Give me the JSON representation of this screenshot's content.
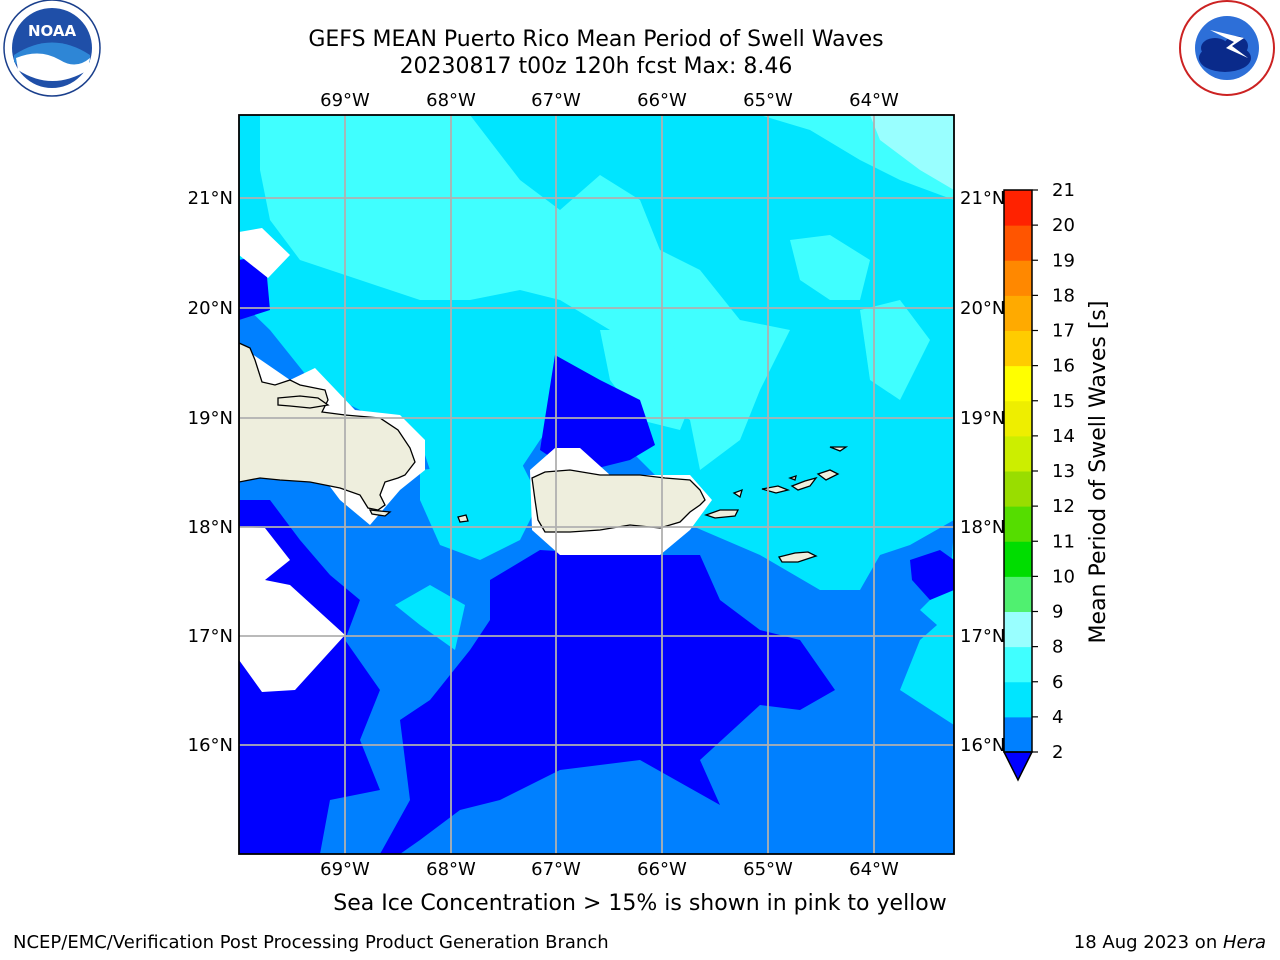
{
  "header": {
    "title_line1": "GEFS MEAN Puerto Rico Mean Period of Swell Waves",
    "title_line2": "20230817 t00z 120h fcst   Max: 8.46"
  },
  "logos": {
    "left": "noaa-logo",
    "left_text": "NOAA",
    "left_ring_text": "NATIONAL OCEANIC AND ATMOSPHERIC ADMINISTRATION · U.S. DEPARTMENT OF COMMERCE",
    "right": "national-weather-service-logo",
    "right_ring_text": "NATIONAL WEATHER SERVICE"
  },
  "map": {
    "lon_ticks_top": [
      "69°W",
      "68°W",
      "67°W",
      "66°W",
      "65°W",
      "64°W"
    ],
    "lon_ticks_bottom": [
      "69°W",
      "68°W",
      "67°W",
      "66°W",
      "65°W",
      "64°W"
    ],
    "lat_ticks_left": [
      "21°N",
      "20°N",
      "19°N",
      "18°N",
      "17°N",
      "16°N"
    ],
    "lat_ticks_right": [
      "21°N",
      "20°N",
      "19°N",
      "18°N",
      "17°N",
      "16°N"
    ],
    "land_color": "#eeeedd",
    "grid_color": "#b0b0b0"
  },
  "colorbar": {
    "label": "Mean Period of Swell Waves [s]",
    "levels": [
      "2",
      "4",
      "6",
      "8",
      "9",
      "10",
      "11",
      "12",
      "13",
      "14",
      "15",
      "16",
      "17",
      "18",
      "19",
      "20",
      "21"
    ],
    "colors": [
      "#0080ff",
      "#00e5ff",
      "#40ffff",
      "#99ffff",
      "#50f070",
      "#00dd00",
      "#55dd00",
      "#99dd00",
      "#ccee00",
      "#eeee00",
      "#ffff00",
      "#ffcc00",
      "#ffaa00",
      "#ff8800",
      "#ff5500",
      "#ff2200"
    ],
    "under_color": "#0000ff"
  },
  "footer": {
    "caption": "Sea Ice Concentration > 15% is shown in pink to yellow",
    "left": "NCEP/EMC/Verification Post Processing Product Generation Branch",
    "right_date": "18 Aug 2023 on ",
    "right_host": "Hera"
  }
}
